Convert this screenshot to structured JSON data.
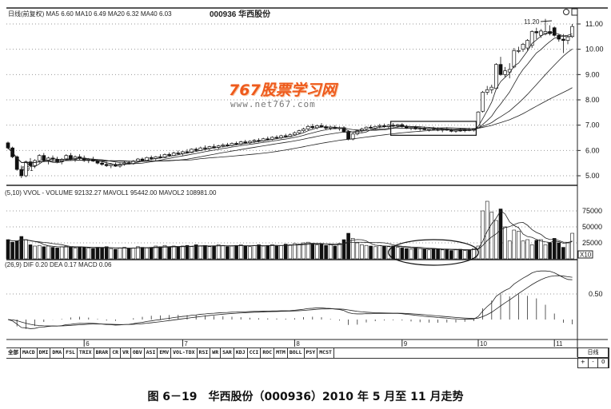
{
  "header": {
    "price_legend": "日线(前复权) MA5 6.60 MA10 6.49 MA20 6.32 MA40 6.03",
    "stock": "000936 华西股份"
  },
  "watermark": {
    "logo": "767股票学习网",
    "url": "www.net767.com"
  },
  "volume_legend": "(5,10) VVOL - VOLUME 92132.27 MAVOL1 95442.00 MAVOL2 108981.00",
  "macd_legend": "(26,9) DIF 0.20 DEA 0.17 MACD 0.06",
  "annotations": {
    "high": "11.20",
    "low": "4.91"
  },
  "volume_unit": "X10",
  "colors": {
    "up": "#ffffff",
    "down": "#111111",
    "logo": "#ee5a1c"
  },
  "tabs": [
    "全部",
    "MACD",
    "DMI",
    "DMA",
    "FSL",
    "TRIX",
    "BRAR",
    "CR",
    "VR",
    "OBV",
    "ASI",
    "EMV",
    "VOL-TDX",
    "RSI",
    "WR",
    "SAR",
    "KDJ",
    "CCI",
    "ROC",
    "MTM",
    "BOLL",
    "PSY",
    "MCST"
  ],
  "right_tabs": {
    "period": "日线",
    "plus": "+",
    "minus": "-",
    "zero": "0"
  },
  "caption": "图 6－19　华西股份（000936）2010 年 5 月至 11 月走势",
  "chart_data": [
    {
      "type": "candlestick",
      "title": "000936 华西股份",
      "y_ticks": [
        "5.00",
        "6.00",
        "7.00",
        "8.00",
        "9.00",
        "10.00",
        "11.00"
      ],
      "ylim": [
        4.7,
        11.6
      ],
      "grid": true,
      "month_labels": [
        {
          "label": "6",
          "start": 17
        },
        {
          "label": "7",
          "start": 39
        },
        {
          "label": "8",
          "start": 64
        },
        {
          "label": "9",
          "start": 88
        },
        {
          "label": "10",
          "start": 105
        },
        {
          "label": "11",
          "start": 122
        }
      ],
      "moving_averages": [
        5,
        10,
        20,
        40
      ],
      "highlight_box": {
        "from": 86,
        "to": 104
      },
      "ohlc": [
        [
          6.3,
          6.35,
          6.05,
          6.1
        ],
        [
          6.1,
          6.15,
          5.7,
          5.75
        ],
        [
          5.75,
          5.8,
          5.2,
          5.25
        ],
        [
          5.25,
          5.4,
          4.91,
          5.0
        ],
        [
          5.0,
          5.6,
          4.95,
          5.55
        ],
        [
          5.55,
          5.7,
          5.35,
          5.4
        ],
        [
          5.4,
          5.65,
          5.3,
          5.6
        ],
        [
          5.6,
          5.85,
          5.5,
          5.8
        ],
        [
          5.8,
          5.9,
          5.55,
          5.6
        ],
        [
          5.6,
          5.75,
          5.45,
          5.7
        ],
        [
          5.7,
          5.8,
          5.55,
          5.65
        ],
        [
          5.65,
          5.75,
          5.5,
          5.55
        ],
        [
          5.55,
          5.7,
          5.45,
          5.65
        ],
        [
          5.65,
          5.85,
          5.6,
          5.8
        ],
        [
          5.8,
          5.9,
          5.6,
          5.65
        ],
        [
          5.65,
          5.8,
          5.55,
          5.75
        ],
        [
          5.75,
          5.85,
          5.6,
          5.7
        ],
        [
          5.7,
          5.8,
          5.55,
          5.6
        ],
        [
          5.6,
          5.7,
          5.5,
          5.65
        ],
        [
          5.65,
          5.75,
          5.55,
          5.58
        ],
        [
          5.58,
          5.65,
          5.45,
          5.5
        ],
        [
          5.5,
          5.6,
          5.4,
          5.45
        ],
        [
          5.45,
          5.55,
          5.35,
          5.4
        ],
        [
          5.4,
          5.5,
          5.3,
          5.45
        ],
        [
          5.45,
          5.52,
          5.35,
          5.38
        ],
        [
          5.38,
          5.5,
          5.32,
          5.46
        ],
        [
          5.46,
          5.58,
          5.4,
          5.52
        ],
        [
          5.52,
          5.6,
          5.45,
          5.48
        ],
        [
          5.48,
          5.62,
          5.44,
          5.58
        ],
        [
          5.58,
          5.7,
          5.52,
          5.66
        ],
        [
          5.66,
          5.72,
          5.55,
          5.6
        ],
        [
          5.6,
          5.75,
          5.56,
          5.72
        ],
        [
          5.72,
          5.8,
          5.62,
          5.68
        ],
        [
          5.68,
          5.78,
          5.6,
          5.75
        ],
        [
          5.75,
          5.85,
          5.68,
          5.72
        ],
        [
          5.72,
          5.88,
          5.7,
          5.84
        ],
        [
          5.84,
          5.92,
          5.75,
          5.8
        ],
        [
          5.8,
          5.95,
          5.78,
          5.9
        ],
        [
          5.9,
          6.0,
          5.82,
          5.88
        ],
        [
          5.88,
          5.98,
          5.8,
          5.95
        ],
        [
          5.95,
          6.05,
          5.88,
          5.92
        ],
        [
          5.92,
          6.08,
          5.9,
          6.05
        ],
        [
          6.05,
          6.12,
          5.95,
          6.0
        ],
        [
          6.0,
          6.15,
          5.98,
          6.1
        ],
        [
          6.1,
          6.2,
          6.02,
          6.08
        ],
        [
          6.08,
          6.18,
          6.0,
          6.15
        ],
        [
          6.15,
          6.25,
          6.08,
          6.12
        ],
        [
          6.12,
          6.22,
          6.05,
          6.18
        ],
        [
          6.18,
          6.28,
          6.12,
          6.22
        ],
        [
          6.22,
          6.3,
          6.15,
          6.2
        ],
        [
          6.2,
          6.32,
          6.16,
          6.28
        ],
        [
          6.28,
          6.35,
          6.2,
          6.25
        ],
        [
          6.25,
          6.38,
          6.22,
          6.34
        ],
        [
          6.34,
          6.42,
          6.28,
          6.3
        ],
        [
          6.3,
          6.4,
          6.25,
          6.36
        ],
        [
          6.36,
          6.45,
          6.3,
          6.4
        ],
        [
          6.4,
          6.48,
          6.32,
          6.38
        ],
        [
          6.38,
          6.5,
          6.35,
          6.46
        ],
        [
          6.46,
          6.55,
          6.4,
          6.44
        ],
        [
          6.44,
          6.56,
          6.4,
          6.52
        ],
        [
          6.52,
          6.6,
          6.45,
          6.5
        ],
        [
          6.5,
          6.62,
          6.46,
          6.58
        ],
        [
          6.58,
          6.66,
          6.5,
          6.55
        ],
        [
          6.55,
          6.68,
          6.52,
          6.62
        ],
        [
          6.62,
          6.75,
          6.58,
          6.7
        ],
        [
          6.7,
          6.82,
          6.65,
          6.78
        ],
        [
          6.78,
          6.9,
          6.72,
          6.85
        ],
        [
          6.85,
          7.0,
          6.8,
          6.95
        ],
        [
          6.95,
          7.05,
          6.85,
          6.9
        ],
        [
          6.9,
          7.02,
          6.84,
          6.98
        ],
        [
          6.98,
          7.08,
          6.9,
          6.94
        ],
        [
          6.94,
          7.0,
          6.82,
          6.88
        ],
        [
          6.88,
          6.98,
          6.8,
          6.92
        ],
        [
          6.92,
          7.0,
          6.85,
          6.86
        ],
        [
          6.86,
          6.95,
          6.78,
          6.9
        ],
        [
          6.9,
          6.96,
          6.7,
          6.75
        ],
        [
          6.75,
          6.8,
          6.4,
          6.45
        ],
        [
          6.45,
          6.7,
          6.4,
          6.65
        ],
        [
          6.65,
          6.82,
          6.6,
          6.78
        ],
        [
          6.78,
          6.9,
          6.72,
          6.85
        ],
        [
          6.85,
          6.95,
          6.8,
          6.92
        ],
        [
          6.92,
          7.0,
          6.85,
          6.88
        ],
        [
          6.88,
          6.98,
          6.82,
          6.95
        ],
        [
          6.95,
          7.05,
          6.88,
          6.98
        ],
        [
          6.98,
          7.06,
          6.9,
          6.94
        ],
        [
          6.94,
          7.04,
          6.88,
          7.0
        ],
        [
          7.0,
          7.08,
          6.92,
          6.96
        ],
        [
          6.96,
          7.05,
          6.9,
          7.02
        ],
        [
          7.02,
          7.08,
          6.9,
          6.94
        ],
        [
          6.94,
          7.0,
          6.85,
          6.88
        ],
        [
          6.88,
          6.96,
          6.8,
          6.92
        ],
        [
          6.92,
          6.98,
          6.82,
          6.85
        ],
        [
          6.85,
          6.92,
          6.78,
          6.88
        ],
        [
          6.88,
          6.95,
          6.8,
          6.82
        ],
        [
          6.82,
          6.9,
          6.75,
          6.86
        ],
        [
          6.86,
          6.94,
          6.8,
          6.84
        ],
        [
          6.84,
          6.92,
          6.76,
          6.8
        ],
        [
          6.8,
          6.88,
          6.72,
          6.85
        ],
        [
          6.85,
          6.92,
          6.78,
          6.8
        ],
        [
          6.8,
          6.86,
          6.72,
          6.76
        ],
        [
          6.76,
          6.84,
          6.7,
          6.8
        ],
        [
          6.8,
          6.88,
          6.74,
          6.78
        ],
        [
          6.78,
          6.86,
          6.72,
          6.82
        ],
        [
          6.82,
          6.9,
          6.76,
          6.8
        ],
        [
          6.8,
          6.88,
          6.75,
          6.84
        ],
        [
          6.9,
          7.55,
          6.88,
          7.52
        ],
        [
          7.55,
          8.35,
          7.5,
          8.3
        ],
        [
          8.3,
          8.55,
          8.2,
          8.4
        ],
        [
          8.4,
          8.6,
          8.25,
          8.5
        ],
        [
          8.45,
          9.45,
          8.4,
          9.4
        ],
        [
          9.4,
          9.7,
          8.95,
          9.0
        ],
        [
          9.0,
          9.3,
          8.9,
          9.15
        ],
        [
          9.1,
          9.45,
          8.85,
          9.2
        ],
        [
          9.3,
          10.05,
          9.25,
          9.95
        ],
        [
          9.95,
          10.1,
          9.85,
          9.95
        ],
        [
          10.0,
          10.25,
          9.9,
          10.2
        ],
        [
          10.05,
          10.4,
          9.95,
          10.35
        ],
        [
          10.15,
          10.75,
          10.05,
          10.7
        ],
        [
          10.7,
          10.85,
          10.4,
          10.65
        ],
        [
          10.55,
          10.8,
          10.45,
          10.72
        ],
        [
          10.6,
          11.2,
          10.55,
          10.7
        ],
        [
          10.7,
          10.95,
          10.55,
          10.62
        ],
        [
          10.85,
          10.9,
          10.5,
          10.55
        ],
        [
          10.55,
          10.6,
          10.3,
          10.4
        ],
        [
          10.4,
          10.6,
          9.85,
          10.35
        ],
        [
          10.35,
          10.55,
          10.2,
          10.5
        ],
        [
          10.5,
          11.0,
          10.45,
          10.9
        ]
      ]
    },
    {
      "type": "bar",
      "title": "VOLUME",
      "unit": "X10",
      "y_ticks": [
        "25000",
        "50000",
        "75000"
      ],
      "ylim": [
        0,
        95000
      ],
      "moving_averages": [
        5,
        10
      ],
      "highlight_ellipse": {
        "from": 86,
        "to": 104
      },
      "values": [
        30000,
        26000,
        28000,
        35000,
        30000,
        22000,
        20000,
        21000,
        19000,
        20000,
        18000,
        17000,
        19000,
        20000,
        18000,
        17000,
        19000,
        18000,
        17000,
        16000,
        18000,
        17000,
        19000,
        16000,
        15000,
        17000,
        18000,
        16000,
        17000,
        19000,
        18000,
        17000,
        18000,
        20000,
        19000,
        21000,
        18000,
        20000,
        19000,
        20000,
        21000,
        19000,
        22000,
        20000,
        21000,
        19000,
        20000,
        22000,
        21000,
        19000,
        20000,
        21000,
        22000,
        20000,
        19000,
        21000,
        22000,
        20000,
        21000,
        22000,
        20000,
        21000,
        23000,
        22000,
        24000,
        23000,
        25000,
        26000,
        24000,
        22000,
        23000,
        21000,
        22000,
        20000,
        24000,
        30000,
        40000,
        32000,
        25000,
        22000,
        21000,
        20000,
        19000,
        21000,
        20000,
        19000,
        20000,
        18000,
        17000,
        16000,
        15000,
        17000,
        16000,
        15000,
        14000,
        16000,
        15000,
        14000,
        15000,
        13000,
        14000,
        15000,
        13000,
        14000,
        16000,
        20000,
        75000,
        90000,
        73000,
        60000,
        78000,
        50000,
        28000,
        45000,
        43000,
        28000,
        30000,
        22000,
        29000,
        30000,
        22000,
        25000,
        32000,
        25000,
        18000,
        25000,
        40000
      ]
    },
    {
      "type": "line",
      "title": "MACD",
      "series": [
        {
          "name": "DIF"
        },
        {
          "name": "DEA"
        },
        {
          "name": "MACD"
        }
      ],
      "params": [
        12,
        26,
        9
      ],
      "y_ticks": [
        "0.50"
      ],
      "ylim": [
        -0.4,
        1.0
      ]
    }
  ]
}
